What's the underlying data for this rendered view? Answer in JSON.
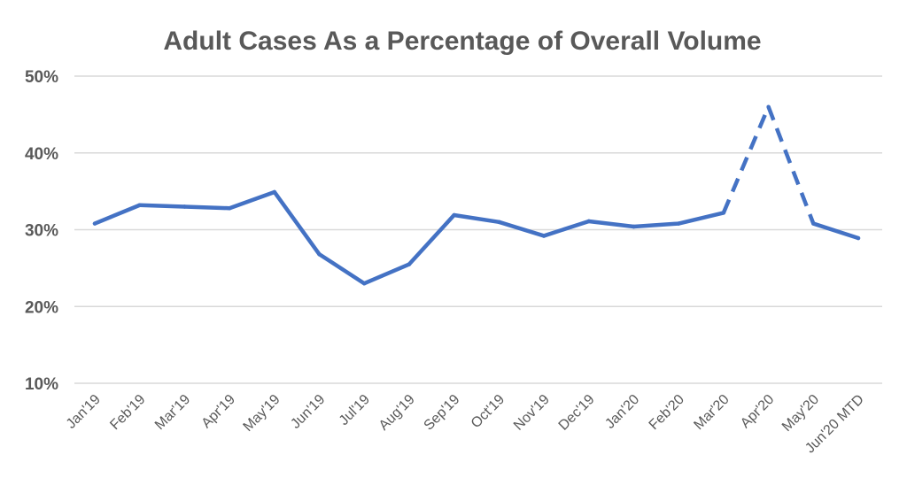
{
  "chart_data": {
    "type": "line",
    "title": "Adult Cases As a Percentage of Overall Volume",
    "xlabel": "",
    "ylabel": "",
    "categories": [
      "Jan'19",
      "Feb'19",
      "Mar'19",
      "Apr'19",
      "May'19",
      "Jun'19",
      "Jul'19",
      "Aug'19",
      "Sep'19",
      "Oct'19",
      "Nov'19",
      "Dec'19",
      "Jan'20",
      "Feb'20",
      "Mar'20",
      "Apr'20",
      "May'20",
      "Jun'20 MTD"
    ],
    "y_ticks": [
      "10%",
      "20%",
      "30%",
      "40%",
      "50%"
    ],
    "ylim": [
      10,
      50
    ],
    "grid": true,
    "legend": "none",
    "series": [
      {
        "values": [
          30.8,
          33.2,
          33.0,
          32.8,
          34.9,
          26.8,
          23.0,
          25.5,
          31.9,
          31.0,
          29.2,
          31.1,
          30.4,
          30.8,
          32.2,
          46.0,
          30.8,
          28.9
        ],
        "color": "#4472c4",
        "dashed_segments": [
          [
            14,
            15
          ],
          [
            15,
            16
          ]
        ]
      }
    ]
  }
}
